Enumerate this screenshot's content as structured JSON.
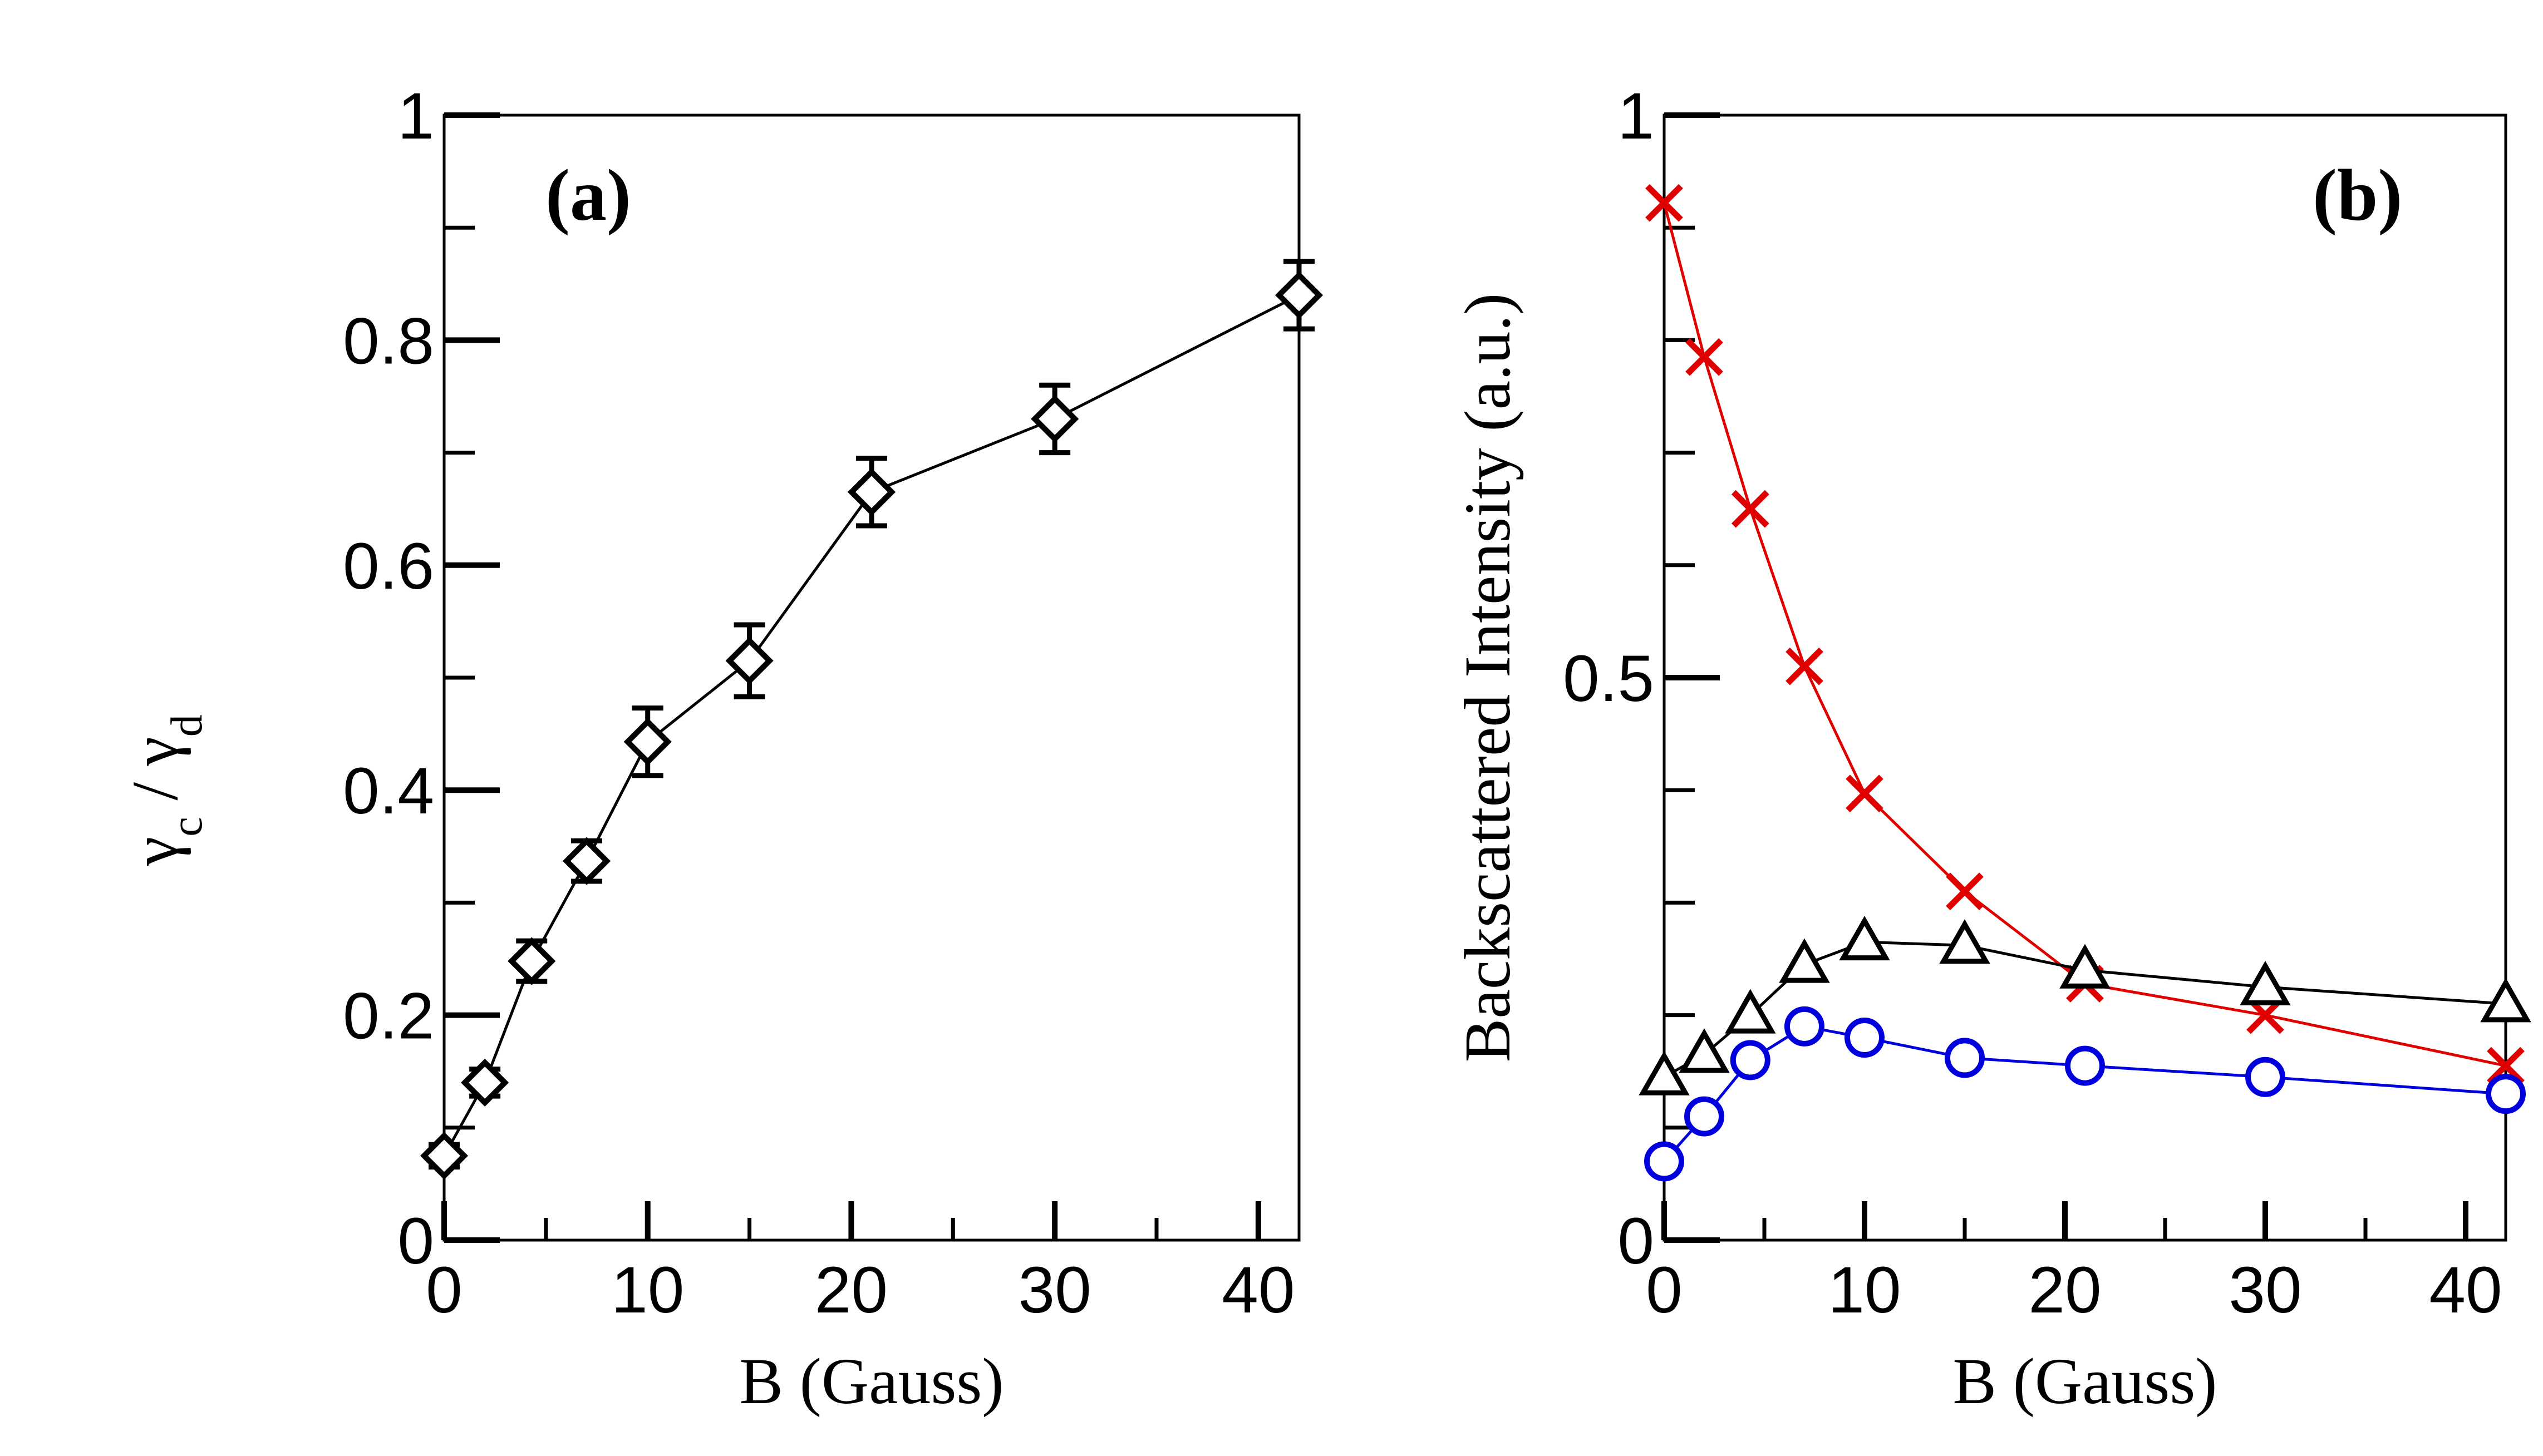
{
  "chart_data": [
    {
      "panel": "a",
      "type": "line",
      "panel_label": "(a)",
      "xlabel": "B (Gauss)",
      "ylabel": {
        "gamma": "γ",
        "sub_c": "c",
        "slash": " / ",
        "sub_d": "d"
      },
      "xlim": [
        0,
        42
      ],
      "ylim": [
        0,
        1
      ],
      "xticks": [
        0,
        10,
        20,
        30,
        40
      ],
      "xtick_labels": [
        "0",
        "10",
        "20",
        "30",
        "40"
      ],
      "yticks": [
        0,
        0.2,
        0.4,
        0.6,
        0.8,
        1
      ],
      "ytick_labels": [
        "0",
        "0.2",
        "0.4",
        "0.6",
        "0.8",
        "1"
      ],
      "series": [
        {
          "name": "gamma_c/gamma_d",
          "marker": "diamond",
          "color": "#000000",
          "x": [
            0,
            2,
            4.3,
            7,
            10,
            15,
            21,
            30,
            42
          ],
          "y": [
            0.075,
            0.14,
            0.248,
            0.337,
            0.443,
            0.515,
            0.665,
            0.73,
            0.84
          ],
          "err": [
            0.01,
            0.012,
            0.018,
            0.018,
            0.03,
            0.032,
            0.03,
            0.03,
            0.03
          ]
        }
      ]
    },
    {
      "panel": "b",
      "type": "line",
      "panel_label": "(b)",
      "xlabel": "B (Gauss)",
      "ylabel": "Backscattered Intensity (a.u.)",
      "xlim": [
        0,
        42
      ],
      "ylim": [
        0,
        1
      ],
      "xticks": [
        0,
        10,
        20,
        30,
        40
      ],
      "xtick_labels": [
        "0",
        "10",
        "20",
        "30",
        "40"
      ],
      "yticks": [
        0,
        0.5,
        1
      ],
      "ytick_labels": [
        "0",
        "0.5",
        "1"
      ],
      "series": [
        {
          "name": "cross",
          "marker": "x",
          "color": "#e00000",
          "x": [
            0,
            2,
            4.3,
            7,
            10,
            15,
            21,
            30,
            42
          ],
          "y": [
            0.922,
            0.785,
            0.65,
            0.51,
            0.397,
            0.31,
            0.228,
            0.2,
            0.155
          ]
        },
        {
          "name": "triangle",
          "marker": "triangle",
          "color": "#000000",
          "x": [
            0,
            2,
            4.3,
            7,
            10,
            15,
            21,
            30,
            42
          ],
          "y": [
            0.145,
            0.165,
            0.2,
            0.245,
            0.265,
            0.262,
            0.24,
            0.225,
            0.21
          ]
        },
        {
          "name": "circle",
          "marker": "circle",
          "color": "#0000dd",
          "x": [
            0,
            2,
            4.3,
            7,
            10,
            15,
            21,
            30,
            42
          ],
          "y": [
            0.07,
            0.11,
            0.16,
            0.19,
            0.18,
            0.162,
            0.155,
            0.145,
            0.13
          ]
        }
      ]
    }
  ]
}
